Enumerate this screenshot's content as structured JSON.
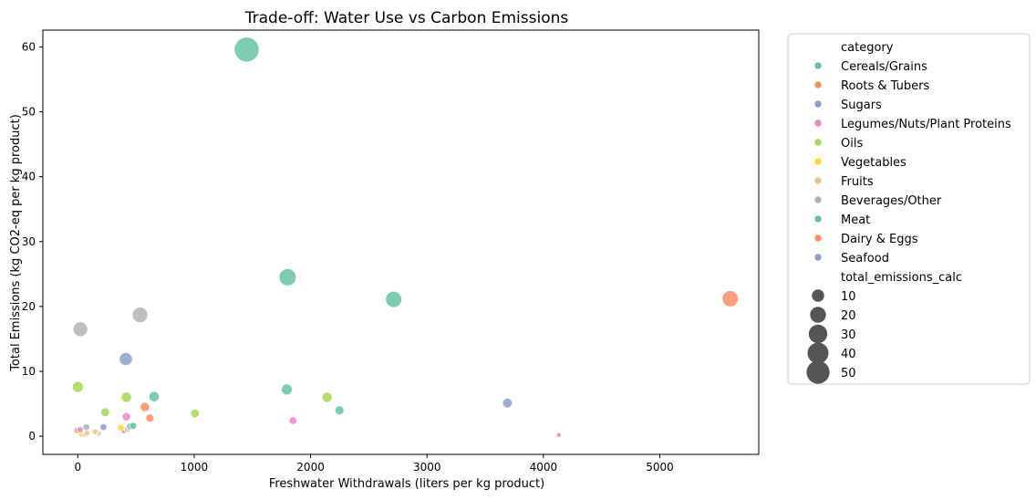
{
  "chart_data": {
    "type": "scatter",
    "title": "Trade-off: Water Use vs Carbon Emissions",
    "xlabel": "Freshwater Withdrawals (liters per kg product)",
    "ylabel": "Total Emissions (kg CO2-eq per kg product)",
    "xlim": [
      -300,
      5850
    ],
    "ylim": [
      -2.8,
      62.6
    ],
    "xticks": [
      0,
      1000,
      2000,
      3000,
      4000,
      5000
    ],
    "yticks": [
      0,
      10,
      20,
      30,
      40,
      50,
      60
    ],
    "grid": false,
    "legend_placement": "outside-right",
    "hue_legend_title": "category",
    "size_legend_title": "total_emissions_calc",
    "size_legend_values": [
      10,
      20,
      30,
      40,
      50
    ],
    "size_legend_color": "#555555",
    "categories": [
      {
        "name": "Cereals/Grains",
        "color": "#66c2a5"
      },
      {
        "name": "Roots & Tubers",
        "color": "#fc8d62"
      },
      {
        "name": "Sugars",
        "color": "#8da0cb"
      },
      {
        "name": "Legumes/Nuts/Plant Proteins",
        "color": "#e78ac3"
      },
      {
        "name": "Oils",
        "color": "#a6d854"
      },
      {
        "name": "Vegetables",
        "color": "#ffd92f"
      },
      {
        "name": "Fruits",
        "color": "#e5c494"
      },
      {
        "name": "Beverages/Other",
        "color": "#b3b3b3"
      },
      {
        "name": "Meat",
        "color": "#66c2a5"
      },
      {
        "name": "Dairy & Eggs",
        "color": "#fc8d62"
      },
      {
        "name": "Seafood",
        "color": "#8da0cb"
      }
    ],
    "series": [
      {
        "category": "Meat",
        "x": 1451,
        "y": 59.6
      },
      {
        "category": "Meat",
        "x": 1803,
        "y": 24.5
      },
      {
        "category": "Meat",
        "x": 2714,
        "y": 21.1
      },
      {
        "category": "Dairy & Eggs",
        "x": 5605,
        "y": 21.2
      },
      {
        "category": "Beverages/Other",
        "x": 22,
        "y": 16.5
      },
      {
        "category": "Beverages/Other",
        "x": 535,
        "y": 18.7
      },
      {
        "category": "Seafood",
        "x": 413,
        "y": 11.9
      },
      {
        "category": "Oils",
        "x": 0,
        "y": 7.6
      },
      {
        "category": "Meat",
        "x": 1796,
        "y": 7.2
      },
      {
        "category": "Meat",
        "x": 656,
        "y": 6.1
      },
      {
        "category": "Oils",
        "x": 418,
        "y": 6.0
      },
      {
        "category": "Oils",
        "x": 2141,
        "y": 6.0
      },
      {
        "category": "Seafood",
        "x": 3691,
        "y": 5.1
      },
      {
        "category": "Dairy & Eggs",
        "x": 577,
        "y": 4.5
      },
      {
        "category": "Meat",
        "x": 2248,
        "y": 4.0
      },
      {
        "category": "Oils",
        "x": 235,
        "y": 3.7
      },
      {
        "category": "Oils",
        "x": 1007,
        "y": 3.5
      },
      {
        "category": "Legumes/Nuts/Plant Proteins",
        "x": 417,
        "y": 3.0
      },
      {
        "category": "Roots & Tubers",
        "x": 620,
        "y": 2.8
      },
      {
        "category": "Legumes/Nuts/Plant Proteins",
        "x": 1848,
        "y": 2.4
      },
      {
        "category": "Meat",
        "x": 476,
        "y": 1.6
      },
      {
        "category": "Cereals/Grains",
        "x": 450,
        "y": 1.5
      },
      {
        "category": "Sugars",
        "x": 220,
        "y": 1.4
      },
      {
        "category": "Beverages/Other",
        "x": 73,
        "y": 1.4
      },
      {
        "category": "Vegetables",
        "x": 370,
        "y": 1.3
      },
      {
        "category": "Fruits",
        "x": 427,
        "y": 1.1
      },
      {
        "category": "Sugars",
        "x": 395,
        "y": 0.9
      },
      {
        "category": "Legumes/Nuts/Plant Proteins",
        "x": 20,
        "y": 1.0
      },
      {
        "category": "Roots & Tubers",
        "x": -5,
        "y": 0.9
      },
      {
        "category": "Fruits",
        "x": 150,
        "y": 0.7
      },
      {
        "category": "Fruits",
        "x": 80,
        "y": 0.5
      },
      {
        "category": "Vegetables",
        "x": 28,
        "y": 0.3
      },
      {
        "category": "Fruits",
        "x": 180,
        "y": 0.4
      },
      {
        "category": "Fruits",
        "x": 60,
        "y": 0.3
      },
      {
        "category": "Legumes/Nuts/Plant Proteins",
        "x": 4133,
        "y": 0.2
      }
    ]
  }
}
